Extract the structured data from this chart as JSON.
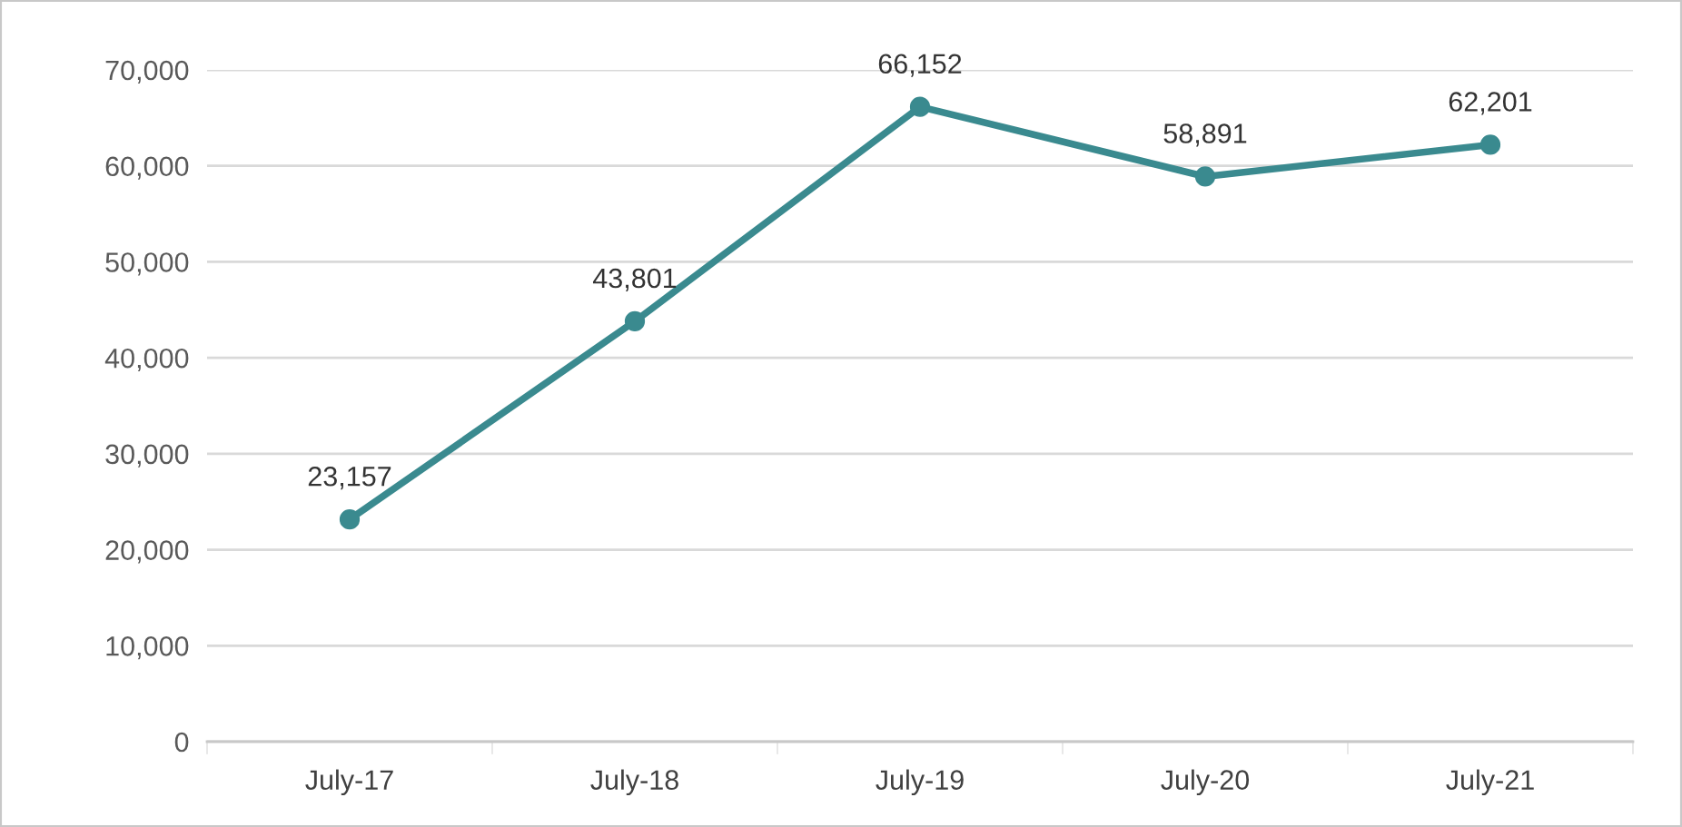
{
  "chart_data": {
    "type": "line",
    "categories": [
      "July-17",
      "July-18",
      "July-19",
      "July-20",
      "July-21"
    ],
    "series": [
      {
        "color": "#3a8a8f",
        "values": [
          23157,
          43801,
          66152,
          58891,
          62201
        ]
      }
    ],
    "ylim": [
      0,
      70000
    ],
    "yticks": [
      {
        "value": 0,
        "label": "0"
      },
      {
        "value": 10000,
        "label": "10,000"
      },
      {
        "value": 20000,
        "label": "20,000"
      },
      {
        "value": 30000,
        "label": "30,000"
      },
      {
        "value": 40000,
        "label": "40,000"
      },
      {
        "value": 50000,
        "label": "50,000"
      },
      {
        "value": 60000,
        "label": "60,000"
      },
      {
        "value": 70000,
        "label": "70,000"
      }
    ],
    "grid": "y",
    "marker": "circle",
    "line_style": "solid",
    "legend": false,
    "value_labels": [
      "23,157",
      "43,801",
      "66,152",
      "58,891",
      "62,201"
    ]
  }
}
